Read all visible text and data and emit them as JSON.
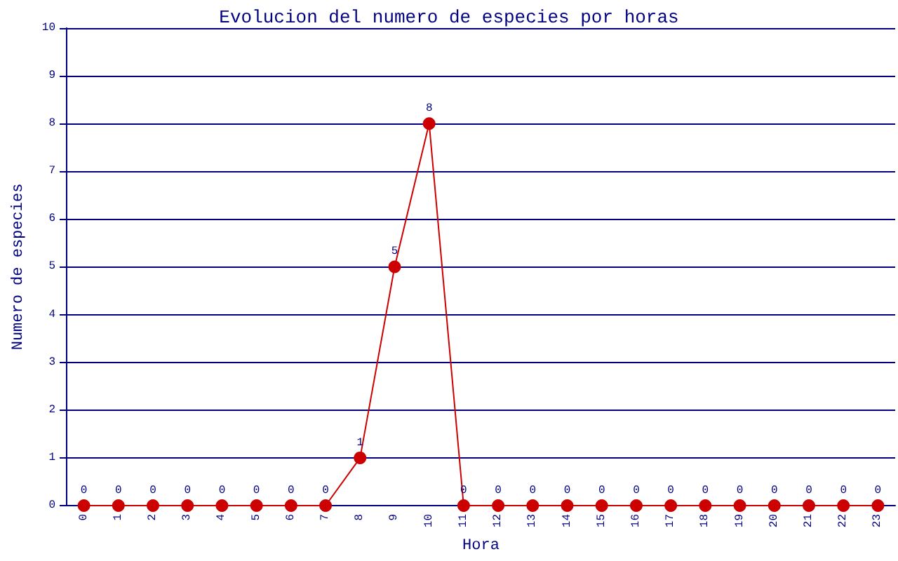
{
  "chart_data": {
    "type": "line",
    "title": "Evolucion del numero de especies por horas",
    "xlabel": "Hora",
    "ylabel": "Numero de especies",
    "categories": [
      "0",
      "1",
      "2",
      "3",
      "4",
      "5",
      "6",
      "7",
      "8",
      "9",
      "10",
      "11",
      "12",
      "13",
      "14",
      "15",
      "16",
      "17",
      "18",
      "19",
      "20",
      "21",
      "22",
      "23"
    ],
    "series": [
      {
        "color": "#cc0000",
        "values": [
          0,
          0,
          0,
          0,
          0,
          0,
          0,
          0,
          1,
          5,
          8,
          0,
          0,
          0,
          0,
          0,
          0,
          0,
          0,
          0,
          0,
          0,
          0,
          0
        ]
      }
    ],
    "ylim": [
      0,
      10
    ],
    "yticks": [
      0,
      1,
      2,
      3,
      4,
      5,
      6,
      7,
      8,
      9,
      10
    ],
    "grid": "y",
    "marker": "circle",
    "line_style": "solid",
    "data_labels": true
  }
}
